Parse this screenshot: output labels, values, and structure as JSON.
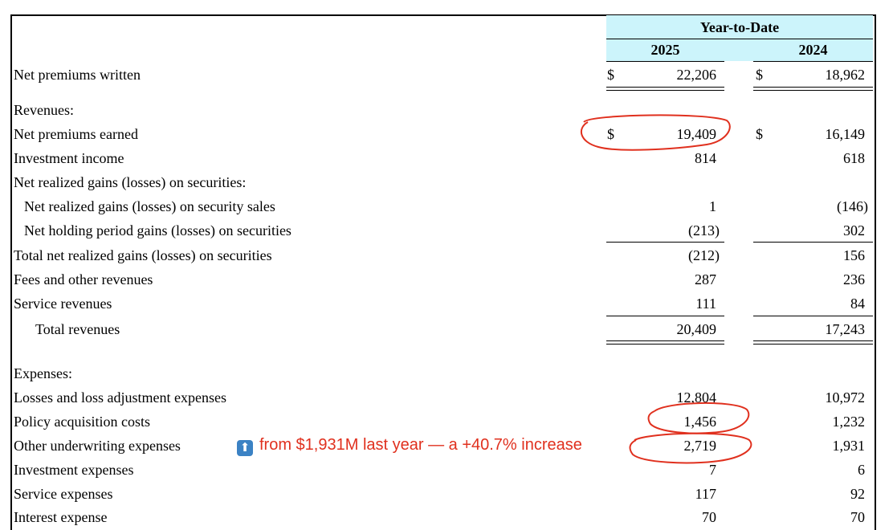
{
  "header": {
    "group": "Year-to-Date",
    "years": [
      "2025",
      "2024"
    ]
  },
  "currency_symbol": "$",
  "rows": [
    {
      "label": "Net premiums written",
      "v2025": "22,206",
      "v2024": "18,962"
    },
    {
      "label": "Revenues:",
      "v2025": "",
      "v2024": ""
    },
    {
      "label": "Net premiums earned",
      "v2025": "19,409",
      "v2024": "16,149"
    },
    {
      "label": "Investment income",
      "v2025": "814",
      "v2024": "618"
    },
    {
      "label": "Net realized gains (losses) on securities:",
      "v2025": "",
      "v2024": ""
    },
    {
      "label": "Net realized gains (losses) on security sales",
      "v2025": "1",
      "v2024": "(146)"
    },
    {
      "label": "Net holding period gains (losses) on securities",
      "v2025": "(213)",
      "v2024": "302"
    },
    {
      "label": "Total net realized gains (losses) on securities",
      "v2025": "(212)",
      "v2024": "156"
    },
    {
      "label": "Fees and other revenues",
      "v2025": "287",
      "v2024": "236"
    },
    {
      "label": "Service revenues",
      "v2025": "111",
      "v2024": "84"
    },
    {
      "label": "Total revenues",
      "v2025": "20,409",
      "v2024": "17,243"
    },
    {
      "label": "Expenses:",
      "v2025": "",
      "v2024": ""
    },
    {
      "label": "Losses and loss adjustment expenses",
      "v2025": "12,804",
      "v2024": "10,972"
    },
    {
      "label": "Policy acquisition costs",
      "v2025": "1,456",
      "v2024": "1,232"
    },
    {
      "label": "Other underwriting expenses",
      "v2025": "2,719",
      "v2024": "1,931"
    },
    {
      "label": "Investment expenses",
      "v2025": "7",
      "v2024": "6"
    },
    {
      "label": "Service expenses",
      "v2025": "117",
      "v2024": "92"
    },
    {
      "label": "Interest expense",
      "v2025": "70",
      "v2024": "70"
    }
  ],
  "annotation": {
    "icon": "up-arrow-icon",
    "text": "from $1,931M last year — a +40.7% increase",
    "color": "#e0301e"
  }
}
